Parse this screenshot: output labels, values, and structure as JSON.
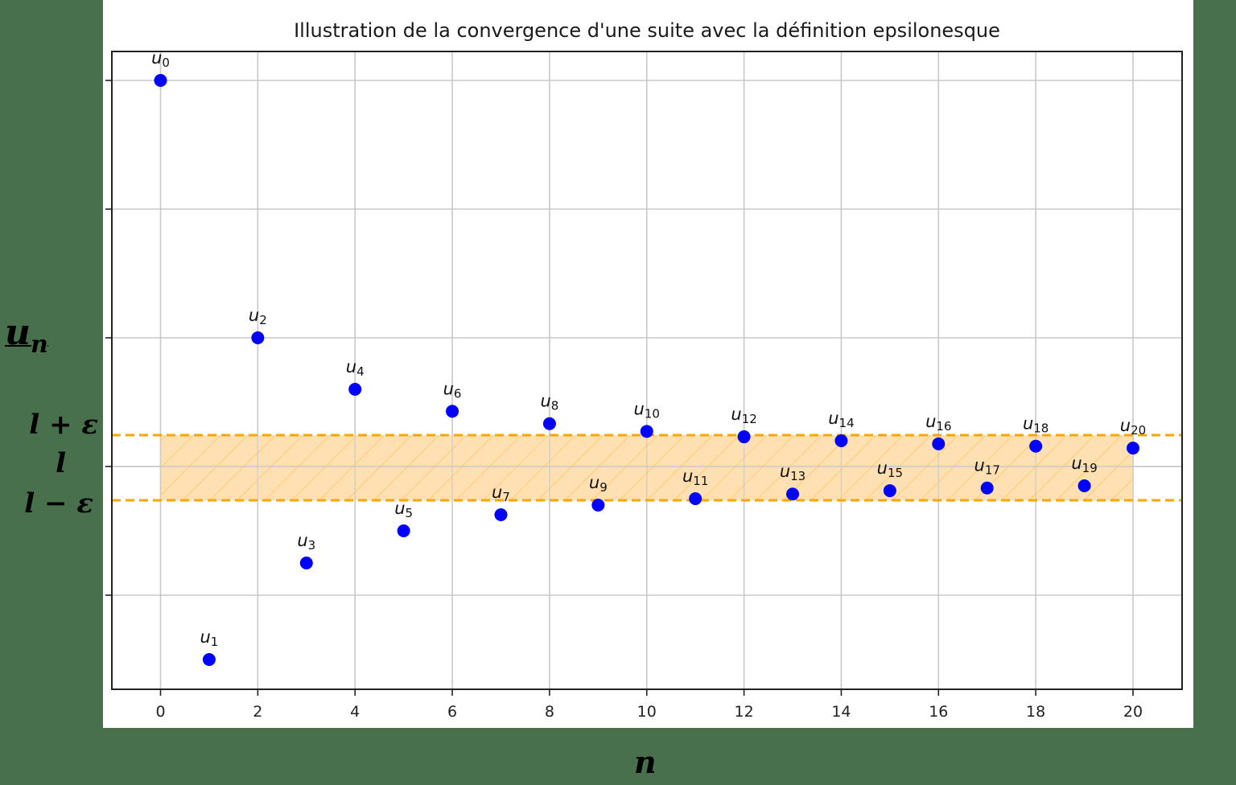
{
  "chart_data": {
    "type": "scatter",
    "title": "Illustration de la convergence d'une suite avec la définition epsilonesque",
    "xlabel": "n",
    "ylabel": "u_n",
    "x": [
      0,
      1,
      2,
      3,
      4,
      5,
      6,
      7,
      8,
      9,
      10,
      11,
      12,
      13,
      14,
      15,
      16,
      17,
      18,
      19,
      20
    ],
    "series": [
      {
        "name": "u_n",
        "color": "#0000ff",
        "values_relative_to_l": [
          3.0,
          -1.5,
          1.0,
          -0.75,
          0.6,
          -0.5,
          0.429,
          -0.375,
          0.333,
          -0.3,
          0.273,
          -0.25,
          0.231,
          -0.214,
          0.2,
          -0.188,
          0.176,
          -0.167,
          0.158,
          -0.15,
          0.143
        ],
        "point_labels": [
          "u0",
          "u1",
          "u2",
          "u3",
          "u4",
          "u5",
          "u6",
          "u7",
          "u8",
          "u9",
          "u10",
          "u11",
          "u12",
          "u13",
          "u14",
          "u15",
          "u16",
          "u17",
          "u18",
          "u19",
          "u20"
        ]
      }
    ],
    "band": {
      "label_upper": "l + ε",
      "label_center": "l",
      "label_lower": "l − ε",
      "epsilon_relative": 0.25,
      "x_range": [
        0,
        20
      ],
      "fill_color": "#ffe0b2",
      "line_color": "#ffa500",
      "line_style": "dashed",
      "hatch": "/"
    },
    "x_ticks": [
      0,
      2,
      4,
      6,
      8,
      10,
      12,
      14,
      16,
      18,
      20
    ],
    "xlim": [
      -1,
      21
    ],
    "y_ticks_relative_to_l": [
      3,
      2,
      1,
      0,
      -1
    ],
    "y_tick_labels": [
      "",
      "",
      "",
      "",
      ""
    ],
    "ylim_relative_to_l": [
      -1.72,
      3.22
    ],
    "grid": true,
    "legend": null
  },
  "labels": {
    "title": "Illustration de la convergence d'une suite avec la définition epsilonesque",
    "y_axis_main": "u",
    "y_axis_sub": "n",
    "x_axis": "n",
    "l_plus_eps": "l + ε",
    "l": "l",
    "l_minus_eps": "l − ε"
  },
  "colors": {
    "background": "#48704c",
    "panel": "#ffffff",
    "points": "#0000ff",
    "band_fill": "#ffe0b2",
    "band_line": "#ffa500",
    "grid": "#c8c8c8"
  }
}
